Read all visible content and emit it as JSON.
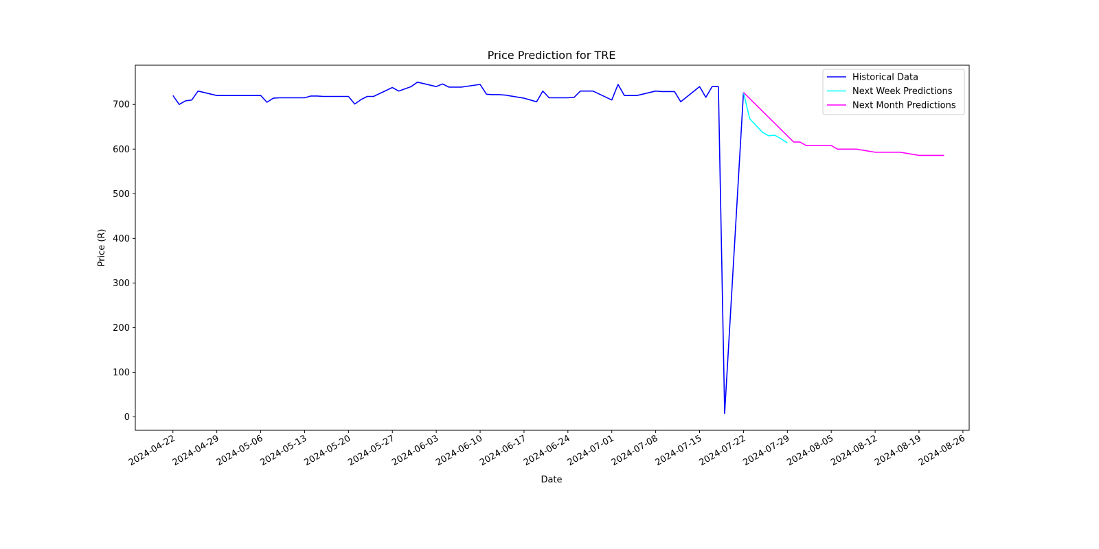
{
  "chart_data": {
    "type": "line",
    "title": "Price Prediction for TRE",
    "xlabel": "Date",
    "ylabel": "Price (R)",
    "x_ticks": [
      "2024-04-22",
      "2024-04-29",
      "2024-05-06",
      "2024-05-13",
      "2024-05-20",
      "2024-05-27",
      "2024-06-03",
      "2024-06-10",
      "2024-06-17",
      "2024-06-24",
      "2024-07-01",
      "2024-07-08",
      "2024-07-15",
      "2024-07-22",
      "2024-07-29",
      "2024-08-05",
      "2024-08-12",
      "2024-08-19",
      "2024-08-26"
    ],
    "y_ticks": [
      0,
      100,
      200,
      300,
      400,
      500,
      600,
      700
    ],
    "xlim": [
      "2024-04-16",
      "2024-08-27"
    ],
    "ylim": [
      -30,
      788
    ],
    "grid": false,
    "legend_position": "top-right",
    "series": [
      {
        "name": "Historical Data",
        "color": "#0000ff",
        "points": [
          [
            "2024-04-22",
            720
          ],
          [
            "2024-04-23",
            700
          ],
          [
            "2024-04-24",
            708
          ],
          [
            "2024-04-25",
            710
          ],
          [
            "2024-04-26",
            730
          ],
          [
            "2024-04-29",
            720
          ],
          [
            "2024-04-30",
            720
          ],
          [
            "2024-05-01",
            720
          ],
          [
            "2024-05-02",
            720
          ],
          [
            "2024-05-03",
            720
          ],
          [
            "2024-05-06",
            720
          ],
          [
            "2024-05-07",
            705
          ],
          [
            "2024-05-08",
            714
          ],
          [
            "2024-05-09",
            715
          ],
          [
            "2024-05-10",
            715
          ],
          [
            "2024-05-13",
            715
          ],
          [
            "2024-05-14",
            719
          ],
          [
            "2024-05-15",
            719
          ],
          [
            "2024-05-16",
            718
          ],
          [
            "2024-05-17",
            718
          ],
          [
            "2024-05-20",
            718
          ],
          [
            "2024-05-21",
            701
          ],
          [
            "2024-05-22",
            711
          ],
          [
            "2024-05-23",
            718
          ],
          [
            "2024-05-24",
            718
          ],
          [
            "2024-05-27",
            738
          ],
          [
            "2024-05-28",
            730
          ],
          [
            "2024-05-29",
            735
          ],
          [
            "2024-05-30",
            740
          ],
          [
            "2024-05-31",
            750
          ],
          [
            "2024-06-03",
            740
          ],
          [
            "2024-06-04",
            746
          ],
          [
            "2024-06-05",
            739
          ],
          [
            "2024-06-06",
            739
          ],
          [
            "2024-06-07",
            739
          ],
          [
            "2024-06-10",
            745
          ],
          [
            "2024-06-11",
            723
          ],
          [
            "2024-06-12",
            722
          ],
          [
            "2024-06-13",
            722
          ],
          [
            "2024-06-14",
            721
          ],
          [
            "2024-06-17",
            714
          ],
          [
            "2024-06-18",
            710
          ],
          [
            "2024-06-19",
            706
          ],
          [
            "2024-06-20",
            730
          ],
          [
            "2024-06-21",
            715
          ],
          [
            "2024-06-24",
            715
          ],
          [
            "2024-06-25",
            716
          ],
          [
            "2024-06-26",
            730
          ],
          [
            "2024-06-27",
            730
          ],
          [
            "2024-06-28",
            730
          ],
          [
            "2024-07-01",
            710
          ],
          [
            "2024-07-02",
            745
          ],
          [
            "2024-07-03",
            720
          ],
          [
            "2024-07-04",
            720
          ],
          [
            "2024-07-05",
            720
          ],
          [
            "2024-07-08",
            730
          ],
          [
            "2024-07-09",
            729
          ],
          [
            "2024-07-10",
            729
          ],
          [
            "2024-07-11",
            729
          ],
          [
            "2024-07-12",
            706
          ],
          [
            "2024-07-15",
            740
          ],
          [
            "2024-07-16",
            716
          ],
          [
            "2024-07-17",
            740
          ],
          [
            "2024-07-18",
            740
          ],
          [
            "2024-07-19",
            8
          ],
          [
            "2024-07-22",
            727
          ]
        ]
      },
      {
        "name": "Next Week Predictions",
        "color": "#00ffff",
        "points": [
          [
            "2024-07-22",
            727
          ],
          [
            "2024-07-23",
            668
          ],
          [
            "2024-07-24",
            653
          ],
          [
            "2024-07-25",
            638
          ],
          [
            "2024-07-26",
            630
          ],
          [
            "2024-07-27",
            631
          ],
          [
            "2024-07-28",
            623
          ],
          [
            "2024-07-29",
            614
          ]
        ]
      },
      {
        "name": "Next Month Predictions",
        "color": "#ff00ff",
        "points": [
          [
            "2024-07-22",
            727
          ],
          [
            "2024-07-30",
            616
          ],
          [
            "2024-07-31",
            616
          ],
          [
            "2024-08-01",
            608
          ],
          [
            "2024-08-02",
            608
          ],
          [
            "2024-08-05",
            608
          ],
          [
            "2024-08-06",
            600
          ],
          [
            "2024-08-07",
            600
          ],
          [
            "2024-08-08",
            600
          ],
          [
            "2024-08-09",
            600
          ],
          [
            "2024-08-12",
            593
          ],
          [
            "2024-08-13",
            593
          ],
          [
            "2024-08-14",
            593
          ],
          [
            "2024-08-15",
            593
          ],
          [
            "2024-08-16",
            593
          ],
          [
            "2024-08-19",
            586
          ],
          [
            "2024-08-20",
            586
          ],
          [
            "2024-08-21",
            586
          ],
          [
            "2024-08-22",
            586
          ],
          [
            "2024-08-23",
            586
          ]
        ]
      }
    ]
  }
}
